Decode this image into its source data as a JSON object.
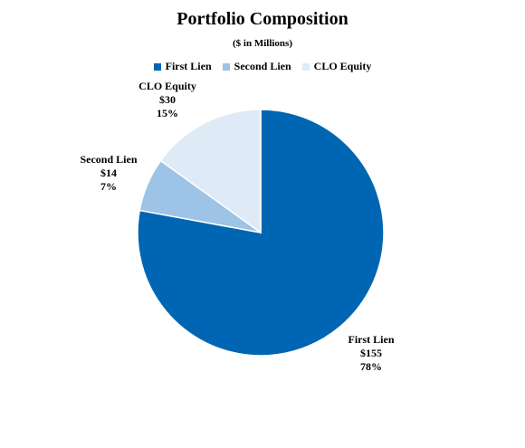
{
  "chart_data": {
    "type": "pie",
    "title": "Portfolio Composition",
    "subtitle": "($ in Millions)",
    "legend_position": "top",
    "slices": [
      {
        "name": "First Lien",
        "value": 155,
        "value_label": "$155",
        "percent_label": "78%",
        "color": "#0066B3"
      },
      {
        "name": "Second Lien",
        "value": 14,
        "value_label": "$14",
        "percent_label": "7%",
        "color": "#9DC3E6"
      },
      {
        "name": "CLO Equity",
        "value": 30,
        "value_label": "$30",
        "percent_label": "15%",
        "color": "#DEEAF6"
      }
    ]
  }
}
